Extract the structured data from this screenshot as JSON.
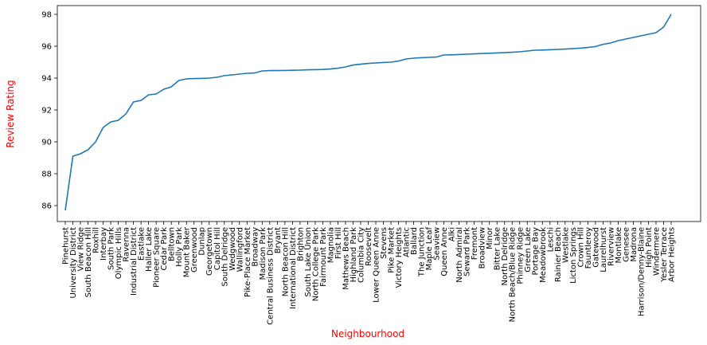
{
  "chart_data": {
    "type": "line",
    "title": "",
    "xlabel": "Neighbourhood",
    "ylabel": "Review Rating",
    "label_color": "#ff0000",
    "line_color": "#1f77b4",
    "ylim": [
      85.0,
      98.55
    ],
    "yticks": [
      86,
      88,
      90,
      92,
      94,
      96,
      98
    ],
    "grid": false,
    "categories": [
      "Pinehurst",
      "University District",
      "View Ridge",
      "South Beacon Hill",
      "Roxhill",
      "Interbay",
      "South Park",
      "Olympic Hills",
      "Ravenna",
      "Industrial District",
      "Eastlake",
      "Haller Lake",
      "Pioneer Square",
      "Cedar Park",
      "Belltown",
      "Holly Park",
      "Mount Baker",
      "Greenwood",
      "Dunlap",
      "Georgetown",
      "Capitol Hill",
      "South Delridge",
      "Wedgwood",
      "Wallingford",
      "Pike-Place Market",
      "Broadway",
      "Madison Park",
      "Central Business District",
      "Bryant",
      "North Beacon Hill",
      "International District",
      "Brighton",
      "South Lake Union",
      "North College Park",
      "Fairmount Park",
      "Magnolia",
      "First Hill",
      "Mathews Beach",
      "Highland Park",
      "Columbia City",
      "Roosevelt",
      "Lower Queen Anne",
      "Stevens",
      "Pike Market",
      "Victory Heights",
      "Atlantic",
      "Ballard",
      "The Junction",
      "Maple Leaf",
      "Seaview",
      "Queen Anne",
      "Alki",
      "North Admiral",
      "Seward Park",
      "Fremont",
      "Broadview",
      "Minor",
      "Bitter Lake",
      "North Delridge",
      "North Beach/Blue Ridge",
      "Phinney Ridge",
      "Green Lake",
      "Portage Bay",
      "Meadowbrook",
      "Leschi",
      "Rainier Beach",
      "Westlake",
      "Licton Springs",
      "Crown Hill",
      "Fauntleroy",
      "Gatewood",
      "Laurelhurst",
      "Riverview",
      "Montlake",
      "Genesee",
      "Madrona",
      "Harrison/Denny-Blaine",
      "High Point",
      "Windermere",
      "Yesler Terrace",
      "Arbor Heights"
    ],
    "values": [
      85.7,
      89.1,
      89.25,
      89.5,
      90.0,
      90.9,
      91.25,
      91.35,
      91.75,
      92.5,
      92.6,
      92.95,
      93.0,
      93.3,
      93.45,
      93.85,
      93.95,
      93.97,
      93.98,
      94.0,
      94.05,
      94.15,
      94.2,
      94.25,
      94.3,
      94.32,
      94.45,
      94.47,
      94.47,
      94.48,
      94.49,
      94.5,
      94.52,
      94.53,
      94.54,
      94.57,
      94.62,
      94.7,
      94.82,
      94.87,
      94.92,
      94.95,
      94.98,
      95.0,
      95.07,
      95.2,
      95.25,
      95.28,
      95.3,
      95.32,
      95.45,
      95.46,
      95.48,
      95.5,
      95.52,
      95.54,
      95.56,
      95.58,
      95.6,
      95.62,
      95.65,
      95.7,
      95.75,
      95.76,
      95.78,
      95.8,
      95.82,
      95.85,
      95.88,
      95.92,
      95.98,
      96.12,
      96.2,
      96.35,
      96.45,
      96.55,
      96.65,
      96.75,
      96.85,
      97.2,
      98.0
    ]
  }
}
